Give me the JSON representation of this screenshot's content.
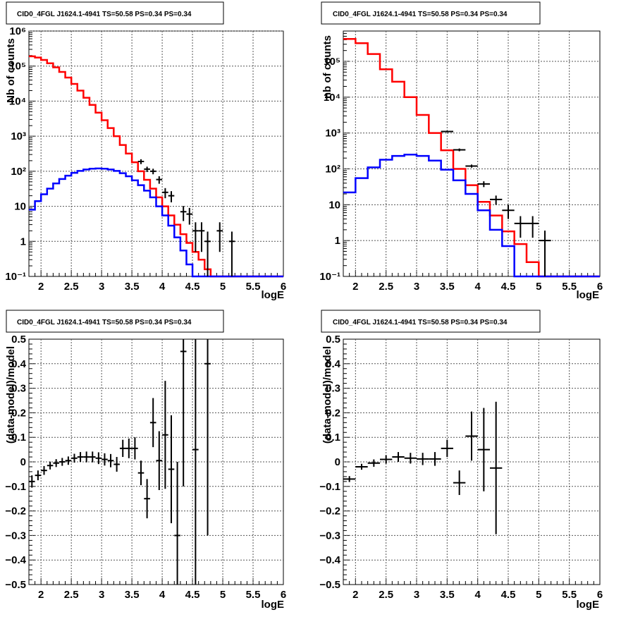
{
  "chart_data": [
    {
      "type": "line",
      "title": "CID0_4FGL J1624.1-4941 TS=50.58 PS=0.34 PS=0.34",
      "xlabel": "logE",
      "ylabel": "Nb of counts",
      "xlim": [
        1.8,
        6.0
      ],
      "ylim": [
        0.1,
        1000000
      ],
      "yscale": "log",
      "grid": true,
      "xticks": [
        "2",
        "2.5",
        "3",
        "3.5",
        "4",
        "4.5",
        "5",
        "5.5",
        "6"
      ],
      "yticks": [
        "10⁻¹",
        "1",
        "10",
        "10²",
        "10³",
        "10⁴",
        "10⁵",
        "10⁶"
      ],
      "x_edges_start": 1.8,
      "bin_width": 0.1,
      "series": [
        {
          "color": "#ff0000",
          "style": "histogram",
          "values": [
            190000,
            175000,
            150000,
            120000,
            92000,
            68000,
            47000,
            31000,
            20000,
            12500,
            7800,
            4700,
            2850,
            1700,
            1000,
            560,
            320,
            180,
            100,
            57,
            32,
            18,
            10,
            5.5,
            3.0,
            1.6,
            0.9,
            0.5,
            0.3,
            0.16,
            0.1,
            0.1,
            0.1,
            0.1,
            0.1,
            0.1,
            0.1,
            0.1,
            0.1,
            0.1,
            0.1,
            0.1
          ]
        },
        {
          "color": "#0000ff",
          "style": "histogram",
          "values": [
            8,
            14,
            22,
            32,
            45,
            60,
            75,
            90,
            102,
            112,
            118,
            120,
            118,
            112,
            102,
            88,
            72,
            55,
            40,
            28,
            18,
            10,
            5.5,
            2.8,
            1.3,
            0.55,
            0.22,
            0.1,
            0.1,
            0.1,
            0.1,
            0.1,
            0.1,
            0.1,
            0.1,
            0.1,
            0.1,
            0.1,
            0.1,
            0.1,
            0.1,
            0.1
          ]
        },
        {
          "color": "#000000",
          "style": "errorbar",
          "points": [
            [
              3.65,
              190,
              30
            ],
            [
              3.75,
              115,
              20
            ],
            [
              3.85,
              100,
              18
            ],
            [
              3.95,
              58,
              14
            ],
            [
              4.05,
              25,
              8
            ],
            [
              4.15,
              20,
              7
            ],
            [
              4.35,
              7,
              3.2
            ],
            [
              4.45,
              6,
              3
            ],
            [
              4.55,
              2,
              1.5
            ],
            [
              4.65,
              2,
              1.5
            ],
            [
              4.75,
              1,
              0.9
            ],
            [
              4.95,
              2,
              1.5
            ],
            [
              5.15,
              1,
              0.9
            ]
          ]
        }
      ]
    },
    {
      "type": "line",
      "title": "CID0_4FGL J1624.1-4941 TS=50.58 PS=0.34 PS=0.34",
      "xlabel": "logE",
      "ylabel": "nb of counts",
      "xlim": [
        1.8,
        6.0
      ],
      "ylim": [
        0.1,
        700000
      ],
      "yscale": "log",
      "grid": true,
      "xticks": [
        "2",
        "2.5",
        "3",
        "3.5",
        "4",
        "4.5",
        "5",
        "5.5",
        "6"
      ],
      "yticks": [
        "10⁻¹",
        "1",
        "10",
        "10²",
        "10³",
        "10⁴",
        "10⁵"
      ],
      "x_edges_start": 1.8,
      "bin_width": 0.2,
      "series": [
        {
          "color": "#ff0000",
          "style": "histogram",
          "values": [
            420000,
            320000,
            160000,
            60000,
            27000,
            10000,
            3200,
            1000,
            330,
            100,
            35,
            12,
            5,
            1.8,
            0.8,
            0.25,
            0.1,
            0.1,
            0.1,
            0.1,
            0.1
          ]
        },
        {
          "color": "#0000ff",
          "style": "histogram",
          "values": [
            22,
            55,
            110,
            180,
            230,
            250,
            230,
            170,
            95,
            48,
            20,
            7,
            2,
            0.7,
            0.1,
            0.1,
            0.1,
            0.1,
            0.1,
            0.1,
            0.1
          ]
        },
        {
          "color": "#000000",
          "style": "errorbar",
          "points": [
            [
              3.5,
              1100,
              60
            ],
            [
              3.7,
              340,
              30
            ],
            [
              3.9,
              120,
              12
            ],
            [
              4.1,
              38,
              7
            ],
            [
              4.3,
              14,
              4
            ],
            [
              4.5,
              7,
              3
            ],
            [
              4.7,
              3,
              1.8
            ],
            [
              4.9,
              3,
              1.8
            ],
            [
              5.1,
              1,
              0.9
            ]
          ]
        }
      ]
    },
    {
      "type": "scatter",
      "title": "CID0_4FGL J1624.1-4941 TS=50.58 PS=0.34 PS=0.34",
      "xlabel": "logE",
      "ylabel": "(data-model)/model",
      "xlim": [
        1.8,
        6.0
      ],
      "ylim": [
        -0.5,
        0.5
      ],
      "grid": true,
      "xticks": [
        "2",
        "2.5",
        "3",
        "3.5",
        "4",
        "4.5",
        "5",
        "5.5",
        "6"
      ],
      "yticks": [
        "−0.5",
        "−0.4",
        "−0.3",
        "−0.2",
        "−0.1",
        "0",
        "0.1",
        "0.2",
        "0.3",
        "0.4",
        "0.5"
      ],
      "bin_width": 0.1,
      "points": [
        [
          1.85,
          -0.08,
          0.025
        ],
        [
          1.95,
          -0.055,
          0.02
        ],
        [
          2.05,
          -0.035,
          0.018
        ],
        [
          2.15,
          -0.015,
          0.016
        ],
        [
          2.25,
          -0.005,
          0.016
        ],
        [
          2.35,
          0.0,
          0.016
        ],
        [
          2.45,
          0.005,
          0.017
        ],
        [
          2.55,
          0.015,
          0.018
        ],
        [
          2.65,
          0.02,
          0.02
        ],
        [
          2.75,
          0.02,
          0.022
        ],
        [
          2.85,
          0.02,
          0.022
        ],
        [
          2.95,
          0.015,
          0.024
        ],
        [
          3.05,
          0.01,
          0.025
        ],
        [
          3.15,
          0.005,
          0.027
        ],
        [
          3.25,
          -0.01,
          0.03
        ],
        [
          3.35,
          0.055,
          0.035
        ],
        [
          3.45,
          0.055,
          0.04
        ],
        [
          3.55,
          0.055,
          0.045
        ],
        [
          3.65,
          -0.045,
          0.05
        ],
        [
          3.75,
          -0.15,
          0.08
        ],
        [
          3.85,
          0.16,
          0.1
        ],
        [
          3.95,
          0.005,
          0.12
        ],
        [
          4.05,
          0.11,
          0.22
        ],
        [
          4.15,
          -0.03,
          0.22
        ],
        [
          4.25,
          -0.3,
          0.3
        ],
        [
          4.35,
          0.45,
          0.55
        ],
        [
          4.55,
          0.05,
          0.6
        ],
        [
          4.75,
          0.4,
          0.7
        ]
      ]
    },
    {
      "type": "scatter",
      "title": "CID0_4FGL J1624.1-4941 TS=50.58 PS=0.34 PS=0.34",
      "xlabel": "logE",
      "ylabel": "(data-model)/model",
      "xlim": [
        1.8,
        6.0
      ],
      "ylim": [
        -0.5,
        0.5
      ],
      "grid": true,
      "xticks": [
        "2",
        "2.5",
        "3",
        "3.5",
        "4",
        "4.5",
        "5",
        "5.5",
        "6"
      ],
      "yticks": [
        "−0.5",
        "−0.4",
        "−0.3",
        "−0.2",
        "−0.1",
        "0",
        "0.1",
        "0.2",
        "0.3",
        "0.4",
        "0.5"
      ],
      "bin_width": 0.2,
      "points": [
        [
          1.9,
          -0.07,
          0.012
        ],
        [
          2.1,
          -0.02,
          0.012
        ],
        [
          2.3,
          -0.005,
          0.015
        ],
        [
          2.5,
          0.01,
          0.017
        ],
        [
          2.7,
          0.02,
          0.02
        ],
        [
          2.9,
          0.015,
          0.022
        ],
        [
          3.1,
          0.012,
          0.025
        ],
        [
          3.3,
          0.012,
          0.028
        ],
        [
          3.5,
          0.055,
          0.035
        ],
        [
          3.7,
          -0.085,
          0.05
        ],
        [
          3.9,
          0.105,
          0.1
        ],
        [
          4.1,
          0.05,
          0.17
        ],
        [
          4.3,
          -0.025,
          0.27
        ]
      ]
    }
  ]
}
